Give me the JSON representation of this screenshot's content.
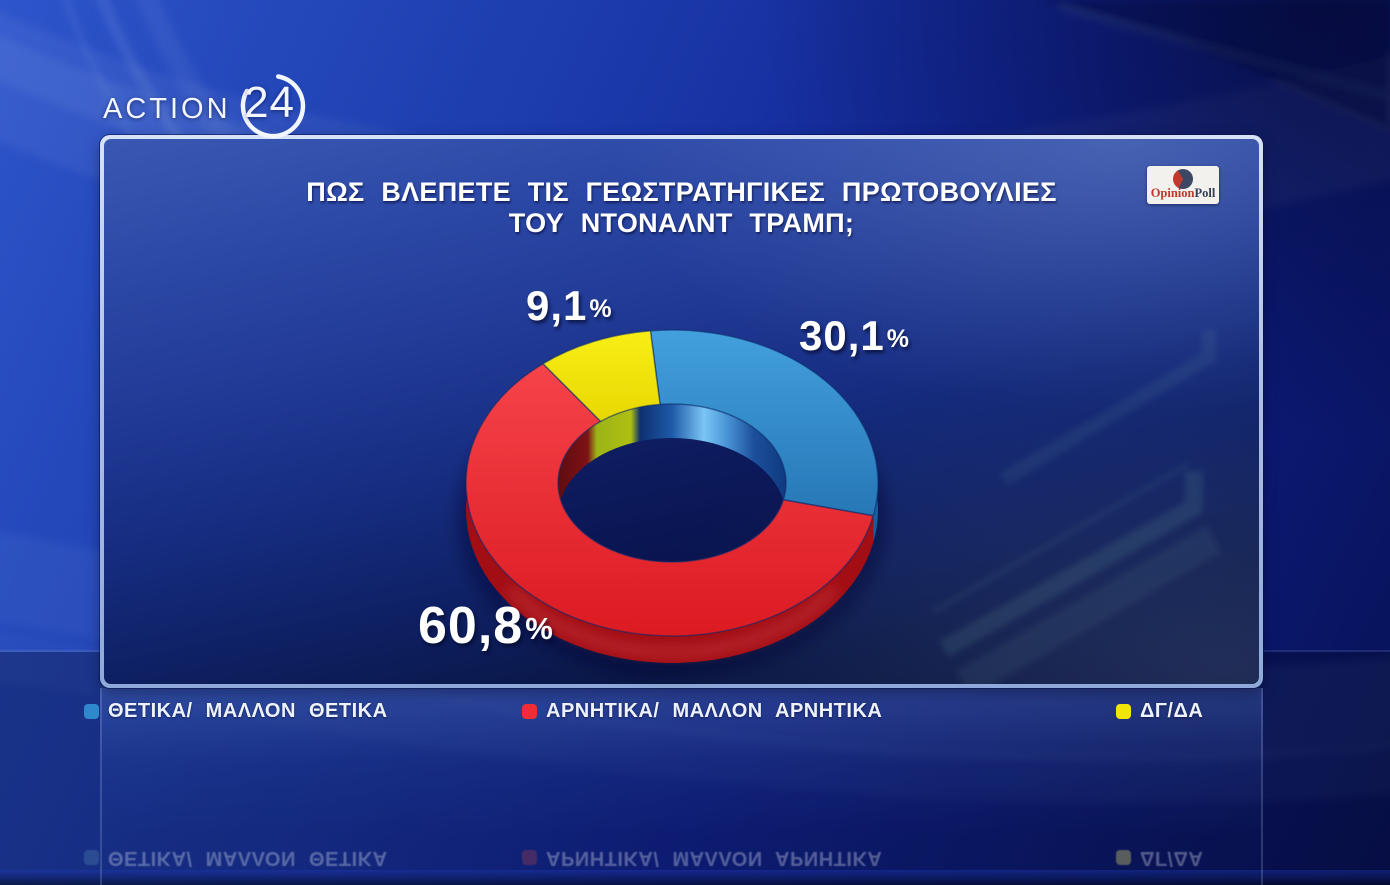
{
  "channel_logo": {
    "brand": "ACTION",
    "number": "24"
  },
  "panel": {
    "title_line1": "ΠΩΣ ΒΛΕΠΕΤΕ ΤΙΣ ΓΕΩΣΤΡΑΤΗΓΙΚΕΣ ΠΡΩΤΟΒΟΥΛΙΕΣ",
    "title_line2": "ΤΟΥ ΝΤΟΝΑΛΝΤ ΤΡΑΜΠ;",
    "source_logo": {
      "name": "OpinionPoll",
      "part1": "Opinion",
      "part2": "Poll"
    }
  },
  "chart_data": {
    "type": "pie",
    "style": "3d-donut",
    "title": "ΠΩΣ ΒΛΕΠΕΤΕ ΤΙΣ ΓΕΩΣΤΡΑΤΗΓΙΚΕΣ ΠΡΩΤΟΒΟΥΛΙΕΣ ΤΟΥ ΝΤΟΝΑΛΝΤ ΤΡΑΜΠ;",
    "unit": "%",
    "rotation_deg": -6,
    "legend_position": "bottom",
    "slices": [
      {
        "label": "ΘΕΤΙΚΑ/ ΜΑΛΛΟΝ ΘΕΤΙΚΑ",
        "value": 30.1,
        "display": "30,1",
        "color": "#2f88cb",
        "side_color": "#1a5f9c"
      },
      {
        "label": "ΑΡΝΗΤΙΚΑ/ ΜΑΛΛΟΝ ΑΡΝΗΤΙΚΑ",
        "value": 60.8,
        "display": "60,8",
        "color": "#ee2d35",
        "side_color": "#a30d14"
      },
      {
        "label": "ΔΓ/ΔΑ",
        "value": 9.1,
        "display": "9,1",
        "color": "#f2e606",
        "side_color": "#a4b513"
      }
    ]
  }
}
